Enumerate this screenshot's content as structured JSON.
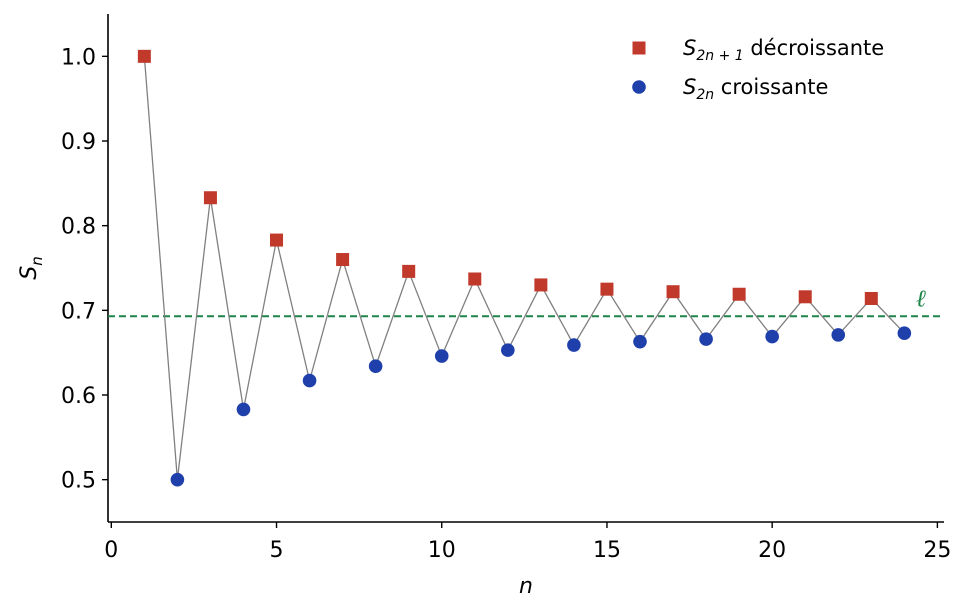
{
  "chart_data": {
    "type": "scatter",
    "title": "",
    "xlabel": "n",
    "ylabel_base": "S",
    "ylabel_sub": "n",
    "xlim": [
      -0.1,
      25.2
    ],
    "ylim": [
      0.45,
      1.05
    ],
    "x_ticks": [
      0,
      5,
      10,
      15,
      20,
      25
    ],
    "x_tick_labels": [
      "0",
      "5",
      "10",
      "15",
      "20",
      "25"
    ],
    "y_ticks": [
      0.5,
      0.6,
      0.7,
      0.8,
      0.9,
      1.0
    ],
    "y_tick_labels": [
      "0.5",
      "0.6",
      "0.7",
      "0.8",
      "0.9",
      "1.0"
    ],
    "grid": false,
    "legend_position": "top-right",
    "connecting_line": {
      "color": "#808080",
      "x": [
        1,
        2,
        3,
        4,
        5,
        6,
        7,
        8,
        9,
        10,
        11,
        12,
        13,
        14,
        15,
        16,
        17,
        18,
        19,
        20,
        21,
        22,
        23,
        24
      ],
      "y": [
        1.0,
        0.5,
        0.833,
        0.583,
        0.783,
        0.617,
        0.76,
        0.634,
        0.746,
        0.646,
        0.737,
        0.653,
        0.73,
        0.659,
        0.725,
        0.663,
        0.722,
        0.666,
        0.719,
        0.669,
        0.716,
        0.671,
        0.714,
        0.673
      ]
    },
    "series": [
      {
        "name_base": "S",
        "name_sub": "2n + 1",
        "name_text": " décroissante",
        "marker": "square",
        "color": "#c0392b",
        "x": [
          1,
          3,
          5,
          7,
          9,
          11,
          13,
          15,
          17,
          19,
          21,
          23
        ],
        "y": [
          1.0,
          0.833,
          0.783,
          0.76,
          0.746,
          0.737,
          0.73,
          0.725,
          0.722,
          0.719,
          0.716,
          0.714
        ]
      },
      {
        "name_base": "S",
        "name_sub": "2n",
        "name_text": " croissante",
        "marker": "circle",
        "color": "#1f3faa",
        "x": [
          2,
          4,
          6,
          8,
          10,
          12,
          14,
          16,
          18,
          20,
          22,
          24
        ],
        "y": [
          0.5,
          0.583,
          0.617,
          0.634,
          0.646,
          0.653,
          0.659,
          0.663,
          0.666,
          0.669,
          0.671,
          0.673
        ]
      }
    ],
    "reference_line": {
      "y": 0.693,
      "label": "ℓ",
      "color": "#1e8449",
      "style": "dashed"
    }
  }
}
